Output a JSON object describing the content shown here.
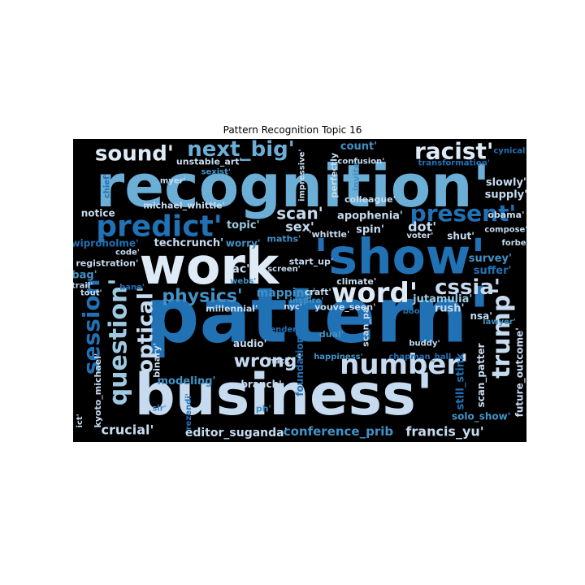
{
  "chart_data": {
    "type": "wordcloud",
    "title": "Pattern Recognition Topic 16",
    "background": "#000000",
    "palette": [
      "#08306b",
      "#08519c",
      "#2171b5",
      "#4292c6",
      "#6baed6",
      "#9ecae1",
      "#c6dbef",
      "#deebf7"
    ],
    "words": [
      {
        "text": "pattern'",
        "x": 0.54,
        "y": 0.585,
        "size": 94,
        "color": "#2171b5",
        "rotate": 0
      },
      {
        "text": "recognition'",
        "x": 0.485,
        "y": 0.155,
        "size": 72,
        "color": "#6baed6",
        "rotate": 0
      },
      {
        "text": "business'",
        "x": 0.465,
        "y": 0.845,
        "size": 70,
        "color": "#c6dbef",
        "rotate": 0
      },
      {
        "text": "work",
        "x": 0.3,
        "y": 0.42,
        "size": 62,
        "color": "#deebf7",
        "rotate": 0
      },
      {
        "text": "'show'",
        "x": 0.72,
        "y": 0.39,
        "size": 60,
        "color": "#2171b5",
        "rotate": 0
      },
      {
        "text": "predict'",
        "x": 0.19,
        "y": 0.29,
        "size": 36,
        "color": "#2171b5",
        "rotate": 0
      },
      {
        "text": "word'",
        "x": 0.665,
        "y": 0.51,
        "size": 34,
        "color": "#deebf7",
        "rotate": 0
      },
      {
        "text": "number'",
        "x": 0.73,
        "y": 0.745,
        "size": 34,
        "color": "#c6dbef",
        "rotate": 0
      },
      {
        "text": "question'",
        "x": 0.1,
        "y": 0.67,
        "size": 30,
        "color": "#9ecae1",
        "rotate": -90
      },
      {
        "text": "trump'",
        "x": 0.945,
        "y": 0.64,
        "size": 30,
        "color": "#c6dbef",
        "rotate": -90
      },
      {
        "text": "racist'",
        "x": 0.84,
        "y": 0.04,
        "size": 28,
        "color": "#deebf7",
        "rotate": 0
      },
      {
        "text": "present'",
        "x": 0.86,
        "y": 0.245,
        "size": 28,
        "color": "#2171b5",
        "rotate": 0
      },
      {
        "text": "session",
        "x": 0.04,
        "y": 0.62,
        "size": 28,
        "color": "#2171b5",
        "rotate": -90
      },
      {
        "text": "sound'",
        "x": 0.135,
        "y": 0.05,
        "size": 26,
        "color": "#deebf7",
        "rotate": 0
      },
      {
        "text": "next_big'",
        "x": 0.37,
        "y": 0.035,
        "size": 26,
        "color": "#6baed6",
        "rotate": 0
      },
      {
        "text": "optical'",
        "x": 0.16,
        "y": 0.63,
        "size": 26,
        "color": "#c6dbef",
        "rotate": -90
      },
      {
        "text": "cssia'",
        "x": 0.87,
        "y": 0.49,
        "size": 26,
        "color": "#c6dbef",
        "rotate": 0
      },
      {
        "text": "wrong'",
        "x": 0.43,
        "y": 0.735,
        "size": 22,
        "color": "#c6dbef",
        "rotate": 0
      },
      {
        "text": "physics'",
        "x": 0.285,
        "y": 0.52,
        "size": 22,
        "color": "#4292c6",
        "rotate": 0
      },
      {
        "text": "scan'",
        "x": 0.5,
        "y": 0.245,
        "size": 20,
        "color": "#c6dbef",
        "rotate": 0
      },
      {
        "text": "sex'",
        "x": 0.5,
        "y": 0.29,
        "size": 16,
        "color": "#c6dbef",
        "rotate": 0
      },
      {
        "text": "apophenia'",
        "x": 0.655,
        "y": 0.255,
        "size": 13,
        "color": "#c6dbef",
        "rotate": 0
      },
      {
        "text": "spin'",
        "x": 0.655,
        "y": 0.3,
        "size": 13,
        "color": "#c6dbef",
        "rotate": 0
      },
      {
        "text": "dot'",
        "x": 0.77,
        "y": 0.29,
        "size": 16,
        "color": "#c6dbef",
        "rotate": 0
      },
      {
        "text": "'whittle'",
        "x": 0.565,
        "y": 0.315,
        "size": 11,
        "color": "#c6dbef",
        "rotate": 0
      },
      {
        "text": "jutamulia'",
        "x": 0.815,
        "y": 0.53,
        "size": 13,
        "color": "#9ecae1",
        "rotate": 0
      },
      {
        "text": "crucial'",
        "x": 0.12,
        "y": 0.96,
        "size": 16,
        "color": "#c6dbef",
        "rotate": 0
      },
      {
        "text": "editor_suganda'",
        "x": 0.36,
        "y": 0.97,
        "size": 14,
        "color": "#c6dbef",
        "rotate": 0
      },
      {
        "text": "conference_prib",
        "x": 0.585,
        "y": 0.965,
        "size": 15,
        "color": "#4292c6",
        "rotate": 0
      },
      {
        "text": "francis_yu'",
        "x": 0.82,
        "y": 0.965,
        "size": 16,
        "color": "#c6dbef",
        "rotate": 0
      },
      {
        "text": "notice",
        "x": 0.055,
        "y": 0.245,
        "size": 12,
        "color": "#c6dbef",
        "rotate": 0
      },
      {
        "text": "michael_whittle'",
        "x": 0.245,
        "y": 0.22,
        "size": 11,
        "color": "#c6dbef",
        "rotate": 0
      },
      {
        "text": "techcrunch'",
        "x": 0.255,
        "y": 0.345,
        "size": 13,
        "color": "#c6dbef",
        "rotate": 0
      },
      {
        "text": "topic'",
        "x": 0.375,
        "y": 0.285,
        "size": 13,
        "color": "#9ecae1",
        "rotate": 0
      },
      {
        "text": "worry'",
        "x": 0.375,
        "y": 0.345,
        "size": 12,
        "color": "#4292c6",
        "rotate": 0
      },
      {
        "text": "maths'",
        "x": 0.465,
        "y": 0.33,
        "size": 11,
        "color": "#4292c6",
        "rotate": 0
      },
      {
        "text": "wiproholme'",
        "x": 0.07,
        "y": 0.345,
        "size": 12,
        "color": "#2171b5",
        "rotate": 0
      },
      {
        "text": "code'",
        "x": 0.12,
        "y": 0.375,
        "size": 10,
        "color": "#c6dbef",
        "rotate": 0
      },
      {
        "text": "registration'",
        "x": 0.075,
        "y": 0.41,
        "size": 11,
        "color": "#c6dbef",
        "rotate": 0
      },
      {
        "text": "bag'",
        "x": 0.025,
        "y": 0.45,
        "size": 13,
        "color": "#4292c6",
        "rotate": 0
      },
      {
        "text": "trail'",
        "x": 0.02,
        "y": 0.485,
        "size": 10,
        "color": "#c6dbef",
        "rotate": 0
      },
      {
        "text": "tout'",
        "x": 0.04,
        "y": 0.51,
        "size": 10,
        "color": "#c6dbef",
        "rotate": 0
      },
      {
        "text": "bane'",
        "x": 0.13,
        "y": 0.49,
        "size": 10,
        "color": "#2171b5",
        "rotate": 0
      },
      {
        "text": "ac'",
        "x": 0.37,
        "y": 0.43,
        "size": 14,
        "color": "#c6dbef",
        "rotate": 0
      },
      {
        "text": "webs'",
        "x": 0.375,
        "y": 0.47,
        "size": 10,
        "color": "#4292c6",
        "rotate": 0
      },
      {
        "text": "mapping'",
        "x": 0.47,
        "y": 0.51,
        "size": 14,
        "color": "#4292c6",
        "rotate": 0
      },
      {
        "text": "millennial'",
        "x": 0.35,
        "y": 0.56,
        "size": 11,
        "color": "#c6dbef",
        "rotate": 0
      },
      {
        "text": "audio'",
        "x": 0.39,
        "y": 0.675,
        "size": 12,
        "color": "#c6dbef",
        "rotate": 0
      },
      {
        "text": "modeling'",
        "x": 0.25,
        "y": 0.8,
        "size": 13,
        "color": "#4292c6",
        "rotate": 0
      },
      {
        "text": "branch'",
        "x": 0.415,
        "y": 0.81,
        "size": 12,
        "color": "#c6dbef",
        "rotate": 0
      },
      {
        "text": "'hack'",
        "x": 0.455,
        "y": 0.735,
        "size": 10,
        "color": "#c6dbef",
        "rotate": 0
      },
      {
        "text": "ph'",
        "x": 0.42,
        "y": 0.89,
        "size": 11,
        "color": "#4292c6",
        "rotate": 0
      },
      {
        "text": "binary'",
        "x": 0.185,
        "y": 0.73,
        "size": 11,
        "color": "#c6dbef",
        "rotate": -90
      },
      {
        "text": "sir'",
        "x": 0.19,
        "y": 0.89,
        "size": 10,
        "color": "#4292c6",
        "rotate": 0
      },
      {
        "text": "rezendi'",
        "x": 0.255,
        "y": 0.9,
        "size": 10,
        "color": "#2171b5",
        "rotate": -90
      },
      {
        "text": "kyoto_michael'",
        "x": 0.055,
        "y": 0.83,
        "size": 11,
        "color": "#c6dbef",
        "rotate": -90
      },
      {
        "text": "ict'",
        "x": 0.015,
        "y": 0.93,
        "size": 10,
        "color": "#c6dbef",
        "rotate": -90
      },
      {
        "text": "screen'",
        "x": 0.465,
        "y": 0.43,
        "size": 10,
        "color": "#c6dbef",
        "rotate": 0
      },
      {
        "text": "start_up'",
        "x": 0.525,
        "y": 0.405,
        "size": 11,
        "color": "#c6dbef",
        "rotate": 0
      },
      {
        "text": "craft'",
        "x": 0.54,
        "y": 0.505,
        "size": 11,
        "color": "#c6dbef",
        "rotate": 0
      },
      {
        "text": "inspire'",
        "x": 0.515,
        "y": 0.535,
        "size": 10,
        "color": "#4292c6",
        "rotate": 0
      },
      {
        "text": "nyc'",
        "x": 0.485,
        "y": 0.555,
        "size": 10,
        "color": "#c6dbef",
        "rotate": 0
      },
      {
        "text": "climate'",
        "x": 0.625,
        "y": 0.47,
        "size": 11,
        "color": "#c6dbef",
        "rotate": 0
      },
      {
        "text": "youve_seen'",
        "x": 0.6,
        "y": 0.555,
        "size": 11,
        "color": "#c6dbef",
        "rotate": 0
      },
      {
        "text": "gender'",
        "x": 0.46,
        "y": 0.63,
        "size": 10,
        "color": "#2171b5",
        "rotate": 0
      },
      {
        "text": "dual'",
        "x": 0.57,
        "y": 0.645,
        "size": 11,
        "color": "#4292c6",
        "rotate": 0
      },
      {
        "text": "foundation'",
        "x": 0.5,
        "y": 0.745,
        "size": 12,
        "color": "#2171b5",
        "rotate": -90
      },
      {
        "text": "happiness'",
        "x": 0.585,
        "y": 0.72,
        "size": 10,
        "color": "#4292c6",
        "rotate": 0
      },
      {
        "text": "scan_pa",
        "x": 0.645,
        "y": 0.62,
        "size": 11,
        "color": "#c6dbef",
        "rotate": -90
      },
      {
        "text": "boon'",
        "x": 0.755,
        "y": 0.57,
        "size": 10,
        "color": "#2171b5",
        "rotate": 0
      },
      {
        "text": "rush'",
        "x": 0.83,
        "y": 0.56,
        "size": 13,
        "color": "#c6dbef",
        "rotate": 0
      },
      {
        "text": "nsa'",
        "x": 0.9,
        "y": 0.585,
        "size": 12,
        "color": "#c6dbef",
        "rotate": 0
      },
      {
        "text": "lawyer'",
        "x": 0.94,
        "y": 0.605,
        "size": 10,
        "color": "#4292c6",
        "rotate": 0
      },
      {
        "text": "buddy'",
        "x": 0.775,
        "y": 0.675,
        "size": 10,
        "color": "#c6dbef",
        "rotate": 0
      },
      {
        "text": "chapman_hall",
        "x": 0.765,
        "y": 0.72,
        "size": 10,
        "color": "#2171b5",
        "rotate": 0
      },
      {
        "text": "still_stink",
        "x": 0.855,
        "y": 0.8,
        "size": 13,
        "color": "#2171b5",
        "rotate": -90
      },
      {
        "text": "scan_patter",
        "x": 0.9,
        "y": 0.78,
        "size": 12,
        "color": "#c6dbef",
        "rotate": -90
      },
      {
        "text": "future_outcome'",
        "x": 0.985,
        "y": 0.77,
        "size": 12,
        "color": "#c6dbef",
        "rotate": -90
      },
      {
        "text": "solo_show'",
        "x": 0.9,
        "y": 0.915,
        "size": 12,
        "color": "#4292c6",
        "rotate": 0
      },
      {
        "text": "survey'",
        "x": 0.92,
        "y": 0.395,
        "size": 13,
        "color": "#4292c6",
        "rotate": 0
      },
      {
        "text": "suffer'",
        "x": 0.925,
        "y": 0.435,
        "size": 13,
        "color": "#2171b5",
        "rotate": 0
      },
      {
        "text": "obama'",
        "x": 0.955,
        "y": 0.25,
        "size": 11,
        "color": "#c6dbef",
        "rotate": 0
      },
      {
        "text": "compose'",
        "x": 0.955,
        "y": 0.3,
        "size": 10,
        "color": "#c6dbef",
        "rotate": 0
      },
      {
        "text": "forbe'",
        "x": 0.975,
        "y": 0.345,
        "size": 10,
        "color": "#c6dbef",
        "rotate": 0
      },
      {
        "text": "shut'",
        "x": 0.855,
        "y": 0.32,
        "size": 12,
        "color": "#c6dbef",
        "rotate": 0
      },
      {
        "text": "voter'",
        "x": 0.765,
        "y": 0.32,
        "size": 10,
        "color": "#c6dbef",
        "rotate": 0
      },
      {
        "text": "slowly'",
        "x": 0.955,
        "y": 0.145,
        "size": 13,
        "color": "#c6dbef",
        "rotate": 0
      },
      {
        "text": "supply'",
        "x": 0.955,
        "y": 0.185,
        "size": 13,
        "color": "#c6dbef",
        "rotate": 0
      },
      {
        "text": "cynical'",
        "x": 0.965,
        "y": 0.04,
        "size": 10,
        "color": "#2171b5",
        "rotate": 0
      },
      {
        "text": "transformation'",
        "x": 0.84,
        "y": 0.08,
        "size": 10,
        "color": "#2171b5",
        "rotate": 0
      },
      {
        "text": "count'",
        "x": 0.63,
        "y": 0.025,
        "size": 13,
        "color": "#4292c6",
        "rotate": 0
      },
      {
        "text": "confusion'",
        "x": 0.635,
        "y": 0.075,
        "size": 10,
        "color": "#c6dbef",
        "rotate": 0
      },
      {
        "text": "colleague'",
        "x": 0.655,
        "y": 0.2,
        "size": 11,
        "color": "#c6dbef",
        "rotate": 0
      },
      {
        "text": "invite'",
        "x": 0.625,
        "y": 0.12,
        "size": 11,
        "color": "#4292c6",
        "rotate": -90
      },
      {
        "text": "perfectly",
        "x": 0.575,
        "y": 0.12,
        "size": 11,
        "color": "#c6dbef",
        "rotate": -90
      },
      {
        "text": "impressive'",
        "x": 0.505,
        "y": 0.12,
        "size": 10,
        "color": "#c6dbef",
        "rotate": -90
      },
      {
        "text": "unstable_art'",
        "x": 0.3,
        "y": 0.075,
        "size": 11,
        "color": "#c6dbef",
        "rotate": 0
      },
      {
        "text": "myer'",
        "x": 0.22,
        "y": 0.14,
        "size": 10,
        "color": "#c6dbef",
        "rotate": 0
      },
      {
        "text": "chief'",
        "x": 0.075,
        "y": 0.155,
        "size": 10,
        "color": "#2171b5",
        "rotate": -90
      },
      {
        "text": "sexist'",
        "x": 0.315,
        "y": 0.11,
        "size": 10,
        "color": "#4292c6",
        "rotate": 0
      }
    ]
  }
}
